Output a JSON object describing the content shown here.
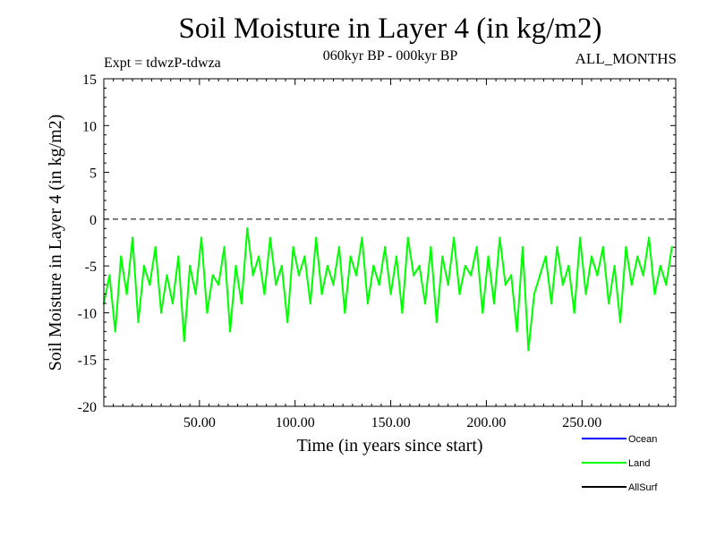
{
  "header": {
    "title": "Soil Moisture in Layer 4 (in kg/m2)",
    "subtitle": "060kyr BP - 000kyr BP",
    "expt": "Expt = tdwzP-tdwza",
    "months": "ALL_MONTHS"
  },
  "chart_data": {
    "type": "line",
    "title": "Soil Moisture in Layer 4 (in kg/m2)",
    "xlabel": "Time (in years since start)",
    "ylabel": "Soil Moisture in Layer 4 (in kg/m2)",
    "xlim": [
      0,
      299
    ],
    "ylim": [
      -20,
      15
    ],
    "x_ticks": [
      50,
      100,
      150,
      200,
      250
    ],
    "x_tick_labels": [
      "50.00",
      "100.00",
      "150.00",
      "200.00",
      "250.00"
    ],
    "y_ticks": [
      -20,
      -15,
      -10,
      -5,
      0,
      5,
      10,
      15
    ],
    "y_tick_labels": [
      "-20",
      "-15",
      "-10",
      "-5",
      "0",
      "5",
      "10",
      "15"
    ],
    "reference_line": {
      "y": 0,
      "style": "dashed"
    },
    "legend_position": "bottom-right",
    "series": [
      {
        "name": "Ocean",
        "legend_label": "Ocean",
        "color": "#0000ff",
        "x": [],
        "values": []
      },
      {
        "name": "Land",
        "legend_label": "Land",
        "color": "#00ff00",
        "x": [
          0,
          3,
          6,
          9,
          12,
          15,
          18,
          21,
          24,
          27,
          30,
          33,
          36,
          39,
          42,
          45,
          48,
          51,
          54,
          57,
          60,
          63,
          66,
          69,
          72,
          75,
          78,
          81,
          84,
          87,
          90,
          93,
          96,
          99,
          102,
          105,
          108,
          111,
          114,
          117,
          120,
          123,
          126,
          129,
          132,
          135,
          138,
          141,
          144,
          147,
          150,
          153,
          156,
          159,
          162,
          165,
          168,
          171,
          174,
          177,
          180,
          183,
          186,
          189,
          192,
          195,
          198,
          201,
          204,
          207,
          210,
          213,
          216,
          219,
          222,
          225,
          228,
          231,
          234,
          237,
          240,
          243,
          246,
          249,
          252,
          255,
          258,
          261,
          264,
          267,
          270,
          273,
          276,
          279,
          282,
          285,
          288,
          291,
          294,
          297
        ],
        "values": [
          -9,
          -6,
          -12,
          -4,
          -8,
          -2,
          -11,
          -5,
          -7,
          -3,
          -10,
          -6,
          -9,
          -4,
          -13,
          -5,
          -8,
          -2,
          -10,
          -6,
          -7,
          -3,
          -12,
          -5,
          -9,
          -1,
          -6,
          -4,
          -8,
          -2,
          -7,
          -5,
          -11,
          -3,
          -6,
          -4,
          -9,
          -2,
          -8,
          -5,
          -7,
          -3,
          -10,
          -4,
          -6,
          -2,
          -9,
          -5,
          -7,
          -3,
          -8,
          -4,
          -10,
          -2,
          -6,
          -5,
          -9,
          -3,
          -11,
          -4,
          -7,
          -2,
          -8,
          -5,
          -6,
          -3,
          -10,
          -4,
          -9,
          -2,
          -7,
          -6,
          -12,
          -3,
          -14,
          -8,
          -6,
          -4,
          -9,
          -3,
          -7,
          -5,
          -10,
          -2,
          -8,
          -4,
          -6,
          -3,
          -9,
          -5,
          -11,
          -3,
          -7,
          -4,
          -6,
          -2,
          -8,
          -5,
          -7,
          -3
        ]
      },
      {
        "name": "AllSurf",
        "legend_label": "AllSurf",
        "color": "#000000",
        "x": [],
        "values": []
      }
    ]
  }
}
